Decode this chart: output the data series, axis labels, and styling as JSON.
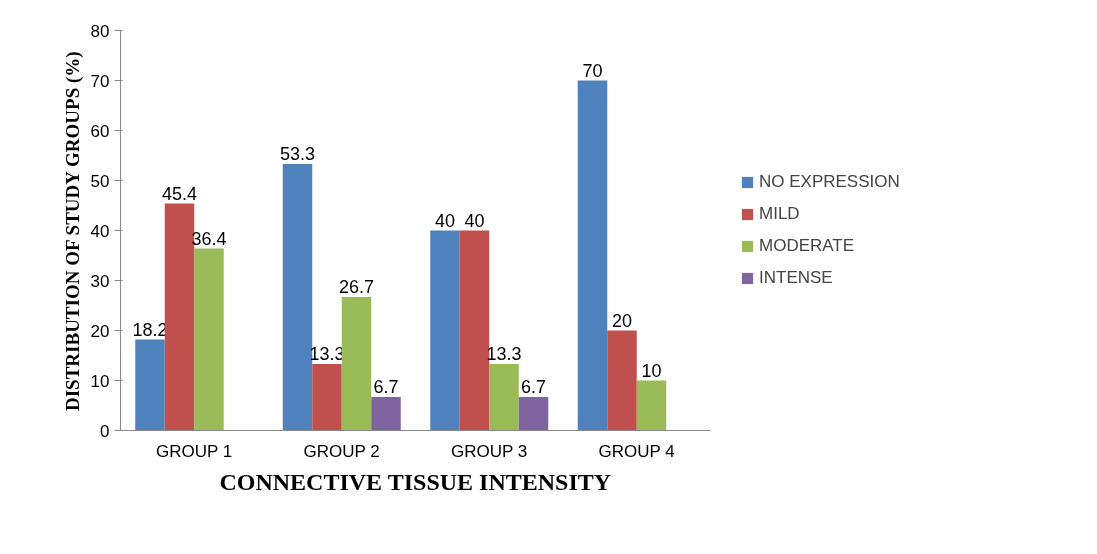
{
  "chart_data": {
    "type": "bar",
    "xlabel": "CONNECTIVE TISSUE INTENSITY",
    "ylabel": "DISTRIBUTION OF STUDY GROUPS (%)",
    "categories": [
      "GROUP 1",
      "GROUP 2",
      "GROUP 3",
      "GROUP 4"
    ],
    "series": [
      {
        "name": "NO EXPRESSION",
        "color": "#4f81bd",
        "values": [
          18.2,
          53.3,
          40,
          70
        ]
      },
      {
        "name": "MILD",
        "color": "#c0504d",
        "values": [
          45.4,
          13.3,
          40,
          20
        ]
      },
      {
        "name": "MODERATE",
        "color": "#9bbb59",
        "values": [
          36.4,
          26.7,
          13.3,
          10
        ]
      },
      {
        "name": "INTENSE",
        "color": "#8064a2",
        "values": [
          null,
          6.7,
          6.7,
          null
        ]
      }
    ],
    "ylim": [
      0,
      80
    ],
    "yticks": [
      0,
      10,
      20,
      30,
      40,
      50,
      60,
      70,
      80
    ],
    "grid": false,
    "legend": "right",
    "data_labels": true
  }
}
